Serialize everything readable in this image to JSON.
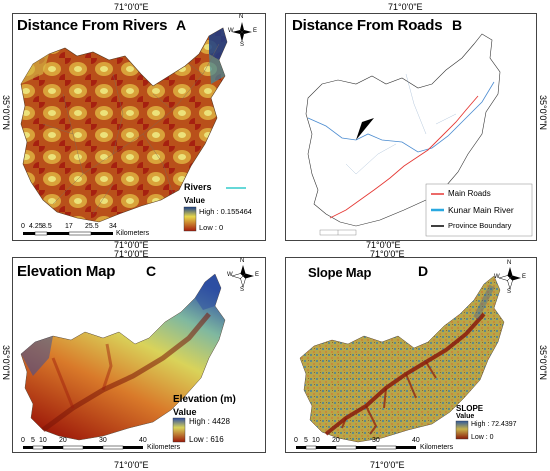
{
  "coords": {
    "top_label": "71°0'0\"E",
    "side_label": "35°0'0\"N"
  },
  "panel_a": {
    "title": "Distance From Rivers",
    "letter": "A",
    "rivers_label": "Rivers",
    "value_label": "Value",
    "high": "High : 0.155464",
    "low": "Low : 0",
    "scale_ticks": [
      "0",
      "4.25",
      "8.5",
      "17",
      "25.5",
      "34"
    ],
    "scale_unit": "Kilometers"
  },
  "panel_b": {
    "title": "Distance From Roads",
    "letter": "B",
    "legend": [
      {
        "label": "Main Roads",
        "color": "#e53935"
      },
      {
        "label": "Kunar Main River",
        "color": "#29a8e0"
      },
      {
        "label": "Province Boundary",
        "color": "#000000"
      }
    ]
  },
  "panel_c": {
    "title": "Elevation Map",
    "letter": "C",
    "legend_title": "Elevation (m)",
    "value_label": "Value",
    "high": "High : 4428",
    "low": "Low : 616",
    "scale_ticks": [
      "0",
      "5",
      "10",
      "20",
      "30",
      "40"
    ],
    "scale_unit": "Kilometers"
  },
  "panel_d": {
    "title": "Slope Map",
    "letter": "D",
    "legend_title": "SLOPE",
    "value_label": "Value",
    "high": "High : 72.4397",
    "low": "Low : 0",
    "scale_ticks": [
      "0",
      "5",
      "10",
      "20",
      "30",
      "40"
    ],
    "scale_unit": "Kilometers"
  },
  "colors": {
    "river_legend": "#33cccc",
    "dist_high": "#1a3f8a",
    "dist_mid": "#e8d84a",
    "dist_low": "#a61c0c",
    "elev_high": "#2e4ea3",
    "elev_mid": "#d9d35a",
    "elev_low": "#9e1a0a",
    "slope_high": "#2f5a9e",
    "slope_mid": "#c7b24b",
    "slope_low": "#8a1a0a"
  },
  "north_arrow": {
    "n": "N",
    "s": "S",
    "e": "E",
    "w": "W"
  }
}
